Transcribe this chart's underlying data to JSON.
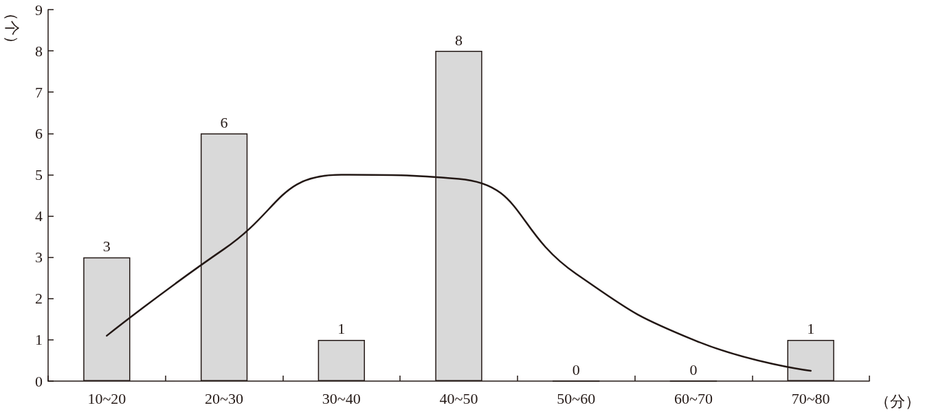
{
  "chart_data": {
    "type": "bar",
    "xlabel": "（分）",
    "ylabel": "（个）",
    "categories": [
      "10~20",
      "20~30",
      "30~40",
      "40~50",
      "50~60",
      "60~70",
      "70~80"
    ],
    "series": [
      {
        "color": "#d9d9d9",
        "values": [
          3,
          6,
          1,
          8,
          0,
          0,
          1
        ],
        "value_labels": [
          "3",
          "6",
          "1",
          "8",
          "0",
          "0",
          "1"
        ]
      },
      {
        "type": "line",
        "color": "#231815",
        "values": [
          1.1,
          3.2,
          5.0,
          4.9,
          2.6,
          1.0,
          0.25
        ],
        "marker": "none",
        "line_style": "solid"
      }
    ],
    "ylim": [
      0,
      9
    ],
    "yticks": [
      0,
      1,
      2,
      3,
      4,
      5,
      6,
      7,
      8,
      9
    ],
    "grid": false
  }
}
